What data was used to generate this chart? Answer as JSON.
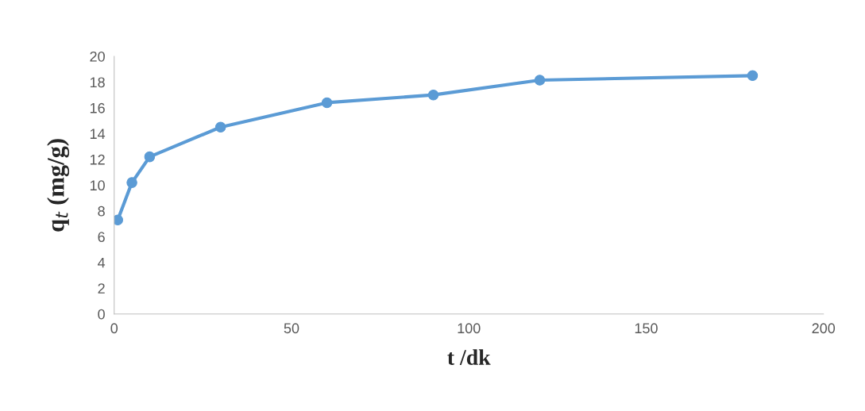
{
  "chart_data": {
    "type": "line",
    "xlabel": "t /dk",
    "ylabel": "q$_{t}$ (mg/g)",
    "x": [
      1,
      5,
      10,
      30,
      60,
      90,
      120,
      180
    ],
    "series": [
      {
        "color": "#5b9bd5",
        "values": [
          7.3,
          10.2,
          12.2,
          14.5,
          16.4,
          17.0,
          18.15,
          18.5
        ]
      }
    ],
    "xlim": [
      0,
      200
    ],
    "xticks": [
      0,
      50,
      100,
      150,
      200
    ],
    "ylim": [
      0,
      20
    ],
    "yticks": [
      0,
      2,
      4,
      6,
      8,
      10,
      12,
      14,
      16,
      18,
      20
    ],
    "grid": false,
    "marker": "circle",
    "line_style": "solid"
  }
}
